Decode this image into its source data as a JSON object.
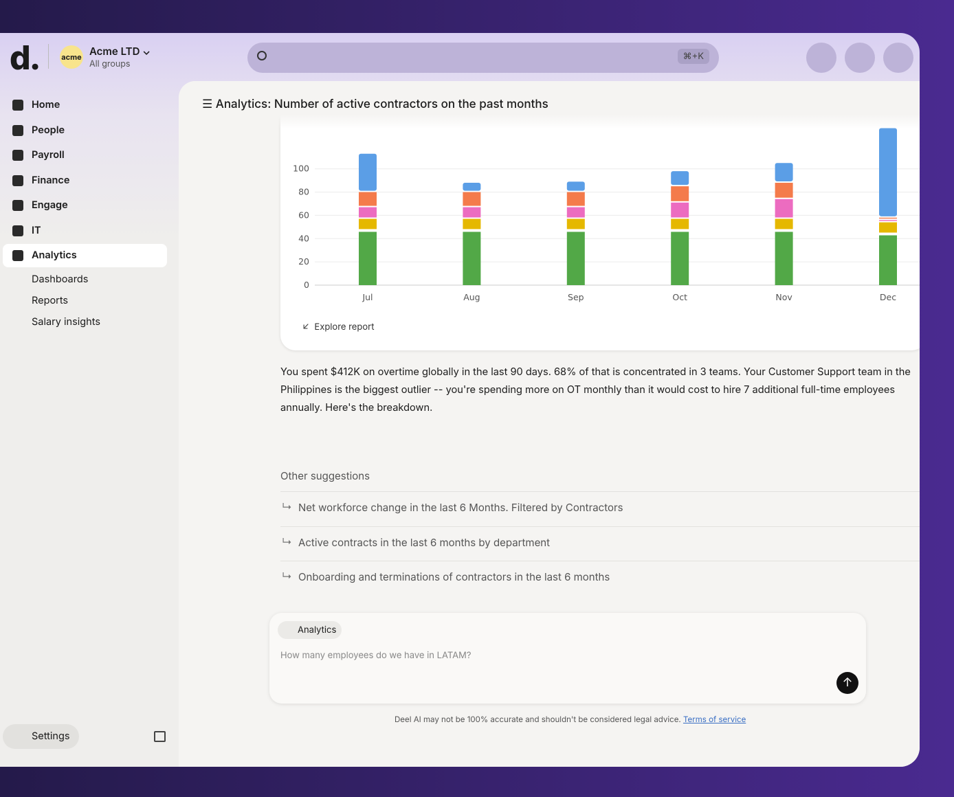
{
  "brand": {
    "logo": "d.",
    "org_badge": "acme",
    "org_name": "Acme LTD",
    "org_sub": "All groups"
  },
  "search": {
    "shortcut": "⌘+K"
  },
  "nav": [
    "Home",
    "People",
    "Payroll",
    "Finance",
    "Engage",
    "IT",
    "Analytics"
  ],
  "subnav": [
    "Dashboards",
    "Reports",
    "Salary insights"
  ],
  "settings": "Settings",
  "chart_data": {
    "type": "bar",
    "stacked": true,
    "title": "Analytics: Number of active contractors on the past months",
    "categories": [
      "Jul",
      "Aug",
      "Sep",
      "Oct",
      "Nov",
      "Dec"
    ],
    "series": [
      {
        "color": "#52a847",
        "values": [
          47,
          47,
          47,
          47,
          47,
          44
        ]
      },
      {
        "color": "#e5b800",
        "values": [
          10,
          10,
          10,
          10,
          10,
          10
        ]
      },
      {
        "color": "#ec6cc0",
        "values": [
          10,
          10,
          10,
          14,
          17,
          2
        ]
      },
      {
        "color": "#f47b4b",
        "values": [
          13,
          13,
          13,
          14,
          14,
          2
        ]
      },
      {
        "color": "#5b9ee6",
        "values": [
          33,
          8,
          9,
          13,
          17,
          77
        ]
      }
    ],
    "ylim": [
      0,
      140
    ],
    "yticks": [
      0,
      20,
      40,
      60,
      80,
      100
    ],
    "grid": true
  },
  "explore": "Explore report",
  "answer": "You spent $412K on overtime globally in the last 90 days. 68% of that is concentrated in 3 teams. Your Customer Support team in the Philippines is the biggest outlier -- you're spending more on OT monthly than it would cost to hire 7 additional full-time employees annually. Here's the breakdown.",
  "suggestions": {
    "title": "Other suggestions",
    "items": [
      "Net workforce change in the last 6 Months. Filtered by Contractors",
      "Active contracts in the last 6 months by department",
      "Onboarding and terminations of contractors in the last 6 months"
    ]
  },
  "composer": {
    "chip": "Analytics",
    "placeholder": "How many employees do we have in LATAM?"
  },
  "disclaimer": {
    "text": "Deel AI may not be 100% accurate and shouldn't be considered legal advice.",
    "link": "Terms of service"
  }
}
